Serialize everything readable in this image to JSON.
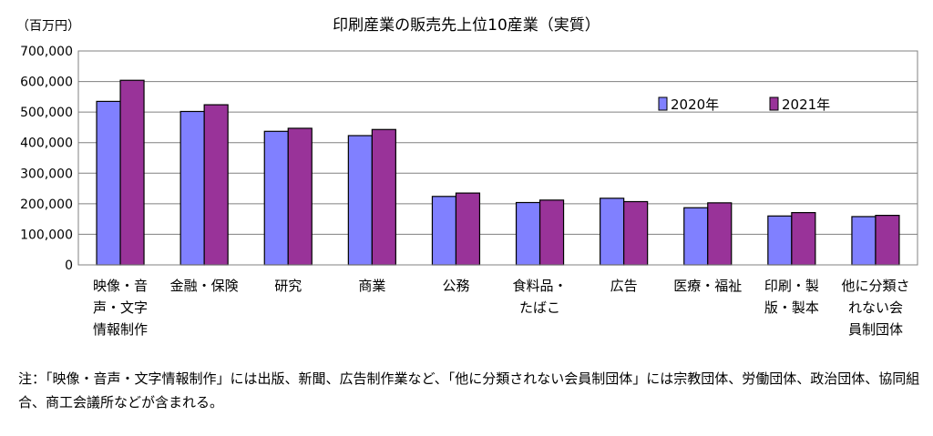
{
  "chart_data": {
    "type": "bar",
    "title": "印刷産業の販売先上位10産業（実質）",
    "unit_label": "（百万円）",
    "ylim": [
      0,
      700000
    ],
    "y_ticks": [
      "0",
      "100,000",
      "200,000",
      "300,000",
      "400,000",
      "500,000",
      "600,000",
      "700,000"
    ],
    "grid": true,
    "legend_position": "top-right",
    "categories": [
      [
        "映像・音",
        "声・文字",
        "情報制作"
      ],
      [
        "金融・保険"
      ],
      [
        "研究"
      ],
      [
        "商業"
      ],
      [
        "公務"
      ],
      [
        "食料品・",
        "たばこ"
      ],
      [
        "広告"
      ],
      [
        "医療・福祉"
      ],
      [
        "印刷・製",
        "版・製本"
      ],
      [
        "他に分類さ",
        "れない会",
        "員制団体"
      ]
    ],
    "series": [
      {
        "name": "2020年",
        "color": "#8080ff",
        "values": [
          535000,
          502000,
          437000,
          423000,
          224000,
          204000,
          218000,
          187000,
          160000,
          158000
        ]
      },
      {
        "name": "2021年",
        "color": "#993399",
        "values": [
          604000,
          524000,
          447000,
          443000,
          235000,
          212000,
          207000,
          203000,
          171000,
          162000
        ]
      }
    ]
  },
  "note": "注：「映像・音声・文字情報制作」には出版、新聞、広告制作業など、「他に分類されない会員制団体」には宗教団体、労働団体、政治団体、協同組合、商工会議所などが含まれる。"
}
